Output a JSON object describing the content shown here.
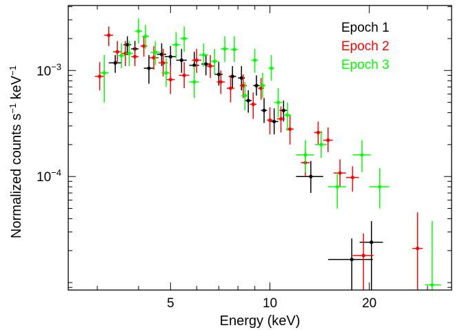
{
  "chart_data": {
    "type": "scatter",
    "title": "",
    "xlabel": "Energy (keV)",
    "ylabel_main": "Normalized counts s",
    "ylabel_sup1": "−1",
    "ylabel_mid": " keV",
    "ylabel_sup2": "−1",
    "x_scale": "log",
    "y_scale": "log",
    "xlim": [
      2.45,
      35.5
    ],
    "ylim": [
      8.5e-06,
      0.0041
    ],
    "x_ticks": [
      {
        "value": 5,
        "label": "5"
      },
      {
        "value": 10,
        "label": "10"
      },
      {
        "value": 20,
        "label": "20"
      }
    ],
    "y_ticks": [
      {
        "value": 0.0001,
        "base": "10",
        "exp": "−4"
      },
      {
        "value": 0.001,
        "base": "10",
        "exp": "−3"
      }
    ],
    "grid": false,
    "legend_position": "top-right",
    "series": [
      {
        "name": "Epoch 1",
        "color": "#000000",
        "points": [
          {
            "x": 3.4,
            "y": 0.00118,
            "xlo": 3.25,
            "xhi": 3.55,
            "ylo": 0.00095,
            "yhi": 0.0014
          },
          {
            "x": 3.7,
            "y": 0.00175,
            "xlo": 3.6,
            "xhi": 3.8,
            "ylo": 0.0014,
            "yhi": 0.0021
          },
          {
            "x": 3.9,
            "y": 0.0016,
            "xlo": 3.8,
            "xhi": 4.0,
            "ylo": 0.0013,
            "yhi": 0.0019
          },
          {
            "x": 4.3,
            "y": 0.00105,
            "xlo": 4.15,
            "xhi": 4.45,
            "ylo": 0.00075,
            "yhi": 0.0014
          },
          {
            "x": 4.7,
            "y": 0.00142,
            "xlo": 4.55,
            "xhi": 4.85,
            "ylo": 0.0011,
            "yhi": 0.0018
          },
          {
            "x": 5.0,
            "y": 0.00135,
            "xlo": 4.8,
            "xhi": 5.2,
            "ylo": 0.00105,
            "yhi": 0.0017
          },
          {
            "x": 5.4,
            "y": 0.00125,
            "xlo": 5.2,
            "xhi": 5.6,
            "ylo": 0.00095,
            "yhi": 0.0016
          },
          {
            "x": 5.9,
            "y": 0.00112,
            "xlo": 5.7,
            "xhi": 6.1,
            "ylo": 0.00085,
            "yhi": 0.0015
          },
          {
            "x": 6.4,
            "y": 0.00115,
            "xlo": 6.2,
            "xhi": 6.6,
            "ylo": 0.0009,
            "yhi": 0.0014
          },
          {
            "x": 7.0,
            "y": 0.00092,
            "xlo": 6.8,
            "xhi": 7.2,
            "ylo": 0.00072,
            "yhi": 0.0012
          },
          {
            "x": 7.7,
            "y": 0.00088,
            "xlo": 7.5,
            "xhi": 7.9,
            "ylo": 0.00068,
            "yhi": 0.0011
          },
          {
            "x": 8.2,
            "y": 0.00085,
            "xlo": 8.0,
            "xhi": 8.4,
            "ylo": 0.00065,
            "yhi": 0.0011
          },
          {
            "x": 8.6,
            "y": 0.00052,
            "xlo": 8.4,
            "xhi": 8.8,
            "ylo": 0.0004,
            "yhi": 0.00065
          },
          {
            "x": 9.1,
            "y": 0.00072,
            "xlo": 8.9,
            "xhi": 9.3,
            "ylo": 0.00058,
            "yhi": 0.0009
          },
          {
            "x": 9.6,
            "y": 0.00042,
            "xlo": 9.4,
            "xhi": 9.8,
            "ylo": 0.00032,
            "yhi": 0.00055
          },
          {
            "x": 10.3,
            "y": 0.00033,
            "xlo": 10.0,
            "xhi": 10.6,
            "ylo": 0.00025,
            "yhi": 0.00044
          },
          {
            "x": 11.0,
            "y": 0.00042,
            "xlo": 10.7,
            "xhi": 11.3,
            "ylo": 0.00033,
            "yhi": 0.00052
          },
          {
            "x": 13.3,
            "y": 0.0001,
            "xlo": 12.0,
            "xhi": 14.5,
            "ylo": 7e-05,
            "yhi": 0.00014
          },
          {
            "x": 17.7,
            "y": 1.65e-05,
            "xlo": 15.0,
            "xhi": 20.5,
            "ylo": 8.5e-06,
            "yhi": 2.6e-05
          },
          {
            "x": 20.3,
            "y": 2.4e-05,
            "xlo": 18.7,
            "xhi": 22.0,
            "ylo": 8.5e-06,
            "yhi": 3.8e-05
          }
        ]
      },
      {
        "name": "Epoch 2",
        "color": "#ff0000",
        "points": [
          {
            "x": 3.05,
            "y": 0.00088,
            "xlo": 2.95,
            "xhi": 3.15,
            "ylo": 0.00065,
            "yhi": 0.0012
          },
          {
            "x": 3.25,
            "y": 0.00215,
            "xlo": 3.15,
            "xhi": 3.35,
            "ylo": 0.0017,
            "yhi": 0.0026
          },
          {
            "x": 3.45,
            "y": 0.0015,
            "xlo": 3.35,
            "xhi": 3.55,
            "ylo": 0.0012,
            "yhi": 0.0019
          },
          {
            "x": 3.65,
            "y": 0.00145,
            "xlo": 3.55,
            "xhi": 3.75,
            "ylo": 0.0011,
            "yhi": 0.0019
          },
          {
            "x": 3.9,
            "y": 0.00135,
            "xlo": 3.8,
            "xhi": 4.0,
            "ylo": 0.0011,
            "yhi": 0.0017
          },
          {
            "x": 4.15,
            "y": 0.0017,
            "xlo": 4.05,
            "xhi": 4.25,
            "ylo": 0.00135,
            "yhi": 0.0021
          },
          {
            "x": 4.45,
            "y": 0.00132,
            "xlo": 4.3,
            "xhi": 4.6,
            "ylo": 0.00102,
            "yhi": 0.0017
          },
          {
            "x": 4.75,
            "y": 0.00118,
            "xlo": 4.6,
            "xhi": 4.9,
            "ylo": 0.00088,
            "yhi": 0.0016
          },
          {
            "x": 5.0,
            "y": 0.00082,
            "xlo": 4.85,
            "xhi": 5.15,
            "ylo": 0.0006,
            "yhi": 0.00112
          },
          {
            "x": 5.5,
            "y": 0.0009,
            "xlo": 5.3,
            "xhi": 5.7,
            "ylo": 0.00068,
            "yhi": 0.0012
          },
          {
            "x": 6.0,
            "y": 0.00125,
            "xlo": 5.8,
            "xhi": 6.2,
            "ylo": 0.00095,
            "yhi": 0.0016
          },
          {
            "x": 6.6,
            "y": 0.0011,
            "xlo": 6.4,
            "xhi": 6.8,
            "ylo": 0.00085,
            "yhi": 0.0014
          },
          {
            "x": 7.1,
            "y": 0.00078,
            "xlo": 6.9,
            "xhi": 7.3,
            "ylo": 0.0006,
            "yhi": 0.001
          },
          {
            "x": 7.6,
            "y": 0.00068,
            "xlo": 7.4,
            "xhi": 7.8,
            "ylo": 0.0005,
            "yhi": 0.0009
          },
          {
            "x": 8.3,
            "y": 0.00072,
            "xlo": 8.1,
            "xhi": 8.5,
            "ylo": 0.00055,
            "yhi": 0.00092
          },
          {
            "x": 8.9,
            "y": 0.00048,
            "xlo": 8.7,
            "xhi": 9.1,
            "ylo": 0.00035,
            "yhi": 0.00062
          },
          {
            "x": 9.4,
            "y": 0.00068,
            "xlo": 9.2,
            "xhi": 9.6,
            "ylo": 0.00053,
            "yhi": 0.00085
          },
          {
            "x": 10.0,
            "y": 0.00034,
            "xlo": 9.8,
            "xhi": 10.2,
            "ylo": 0.00025,
            "yhi": 0.00045
          },
          {
            "x": 10.8,
            "y": 0.00035,
            "xlo": 10.5,
            "xhi": 11.1,
            "ylo": 0.00026,
            "yhi": 0.00046
          },
          {
            "x": 11.5,
            "y": 0.00028,
            "xlo": 11.2,
            "xhi": 11.8,
            "ylo": 0.0002,
            "yhi": 0.00038
          },
          {
            "x": 12.8,
            "y": 0.000135,
            "xlo": 12.4,
            "xhi": 13.2,
            "ylo": 0.0001,
            "yhi": 0.00018
          },
          {
            "x": 14.0,
            "y": 0.00026,
            "xlo": 13.6,
            "xhi": 14.4,
            "ylo": 0.0002,
            "yhi": 0.00033
          },
          {
            "x": 15.0,
            "y": 0.00022,
            "xlo": 14.5,
            "xhi": 15.5,
            "ylo": 0.00017,
            "yhi": 0.00029
          },
          {
            "x": 16.3,
            "y": 0.000108,
            "xlo": 15.6,
            "xhi": 17.0,
            "ylo": 8e-05,
            "yhi": 0.000145
          },
          {
            "x": 17.8,
            "y": 9.8e-05,
            "xlo": 17.0,
            "xhi": 18.6,
            "ylo": 7.2e-05,
            "yhi": 0.000125
          },
          {
            "x": 19.2,
            "y": 1.8e-05,
            "xlo": 17.8,
            "xhi": 20.6,
            "ylo": 8.5e-06,
            "yhi": 2.9e-05
          },
          {
            "x": 28.0,
            "y": 2.1e-05,
            "xlo": 27.0,
            "xhi": 29.0,
            "ylo": 8.5e-06,
            "yhi": 4.6e-05
          }
        ]
      },
      {
        "name": "Epoch 3",
        "color": "#00ff00",
        "points": [
          {
            "x": 3.15,
            "y": 0.00095,
            "xlo": 3.05,
            "xhi": 3.25,
            "ylo": 0.0005,
            "yhi": 0.0014
          },
          {
            "x": 3.55,
            "y": 0.00138,
            "xlo": 3.45,
            "xhi": 3.65,
            "ylo": 0.00105,
            "yhi": 0.0018
          },
          {
            "x": 3.75,
            "y": 0.00145,
            "xlo": 3.65,
            "xhi": 3.85,
            "ylo": 0.0011,
            "yhi": 0.0019
          },
          {
            "x": 4.0,
            "y": 0.00235,
            "xlo": 3.9,
            "xhi": 4.1,
            "ylo": 0.0018,
            "yhi": 0.0031
          },
          {
            "x": 4.2,
            "y": 0.0021,
            "xlo": 4.1,
            "xhi": 4.3,
            "ylo": 0.0016,
            "yhi": 0.0027
          },
          {
            "x": 4.5,
            "y": 0.00148,
            "xlo": 4.35,
            "xhi": 4.65,
            "ylo": 0.00112,
            "yhi": 0.0019
          },
          {
            "x": 4.85,
            "y": 0.00095,
            "xlo": 4.7,
            "xhi": 5.0,
            "ylo": 0.0007,
            "yhi": 0.0013
          },
          {
            "x": 5.2,
            "y": 0.00175,
            "xlo": 5.05,
            "xhi": 5.35,
            "ylo": 0.0013,
            "yhi": 0.0023
          },
          {
            "x": 5.5,
            "y": 0.002,
            "xlo": 5.35,
            "xhi": 5.65,
            "ylo": 0.0015,
            "yhi": 0.0026
          },
          {
            "x": 5.9,
            "y": 0.00078,
            "xlo": 5.7,
            "xhi": 6.1,
            "ylo": 0.00055,
            "yhi": 0.0011
          },
          {
            "x": 6.3,
            "y": 0.0014,
            "xlo": 6.1,
            "xhi": 6.5,
            "ylo": 0.00108,
            "yhi": 0.0018
          },
          {
            "x": 6.8,
            "y": 0.00122,
            "xlo": 6.6,
            "xhi": 7.0,
            "ylo": 0.00092,
            "yhi": 0.0016
          },
          {
            "x": 7.3,
            "y": 0.0016,
            "xlo": 7.1,
            "xhi": 7.5,
            "ylo": 0.0012,
            "yhi": 0.0021
          },
          {
            "x": 7.8,
            "y": 0.00158,
            "xlo": 7.6,
            "xhi": 8.0,
            "ylo": 0.0012,
            "yhi": 0.0021
          },
          {
            "x": 8.4,
            "y": 0.00058,
            "xlo": 8.2,
            "xhi": 8.6,
            "ylo": 0.00042,
            "yhi": 0.00078
          },
          {
            "x": 9.0,
            "y": 0.00125,
            "xlo": 8.8,
            "xhi": 9.2,
            "ylo": 0.00095,
            "yhi": 0.0016
          },
          {
            "x": 9.5,
            "y": 0.00072,
            "xlo": 9.3,
            "xhi": 9.7,
            "ylo": 0.00055,
            "yhi": 0.00095
          },
          {
            "x": 10.1,
            "y": 0.00105,
            "xlo": 9.9,
            "xhi": 10.3,
            "ylo": 0.0008,
            "yhi": 0.0014
          },
          {
            "x": 10.6,
            "y": 0.0005,
            "xlo": 10.3,
            "xhi": 10.9,
            "ylo": 0.00036,
            "yhi": 0.00068
          },
          {
            "x": 11.3,
            "y": 0.00038,
            "xlo": 11.0,
            "xhi": 11.6,
            "ylo": 0.00027,
            "yhi": 0.0005
          },
          {
            "x": 12.8,
            "y": 0.00016,
            "xlo": 12.0,
            "xhi": 13.6,
            "ylo": 0.00011,
            "yhi": 0.00022
          },
          {
            "x": 14.3,
            "y": 0.0002,
            "xlo": 13.7,
            "xhi": 14.9,
            "ylo": 0.00015,
            "yhi": 0.00027
          },
          {
            "x": 16.0,
            "y": 8e-05,
            "xlo": 15.0,
            "xhi": 17.0,
            "ylo": 5e-05,
            "yhi": 0.00011
          },
          {
            "x": 19.0,
            "y": 0.00016,
            "xlo": 17.8,
            "xhi": 20.2,
            "ylo": 0.00011,
            "yhi": 0.00022
          },
          {
            "x": 21.5,
            "y": 8e-05,
            "xlo": 20.0,
            "xhi": 23.0,
            "ylo": 5e-05,
            "yhi": 0.00012
          },
          {
            "x": 31.0,
            "y": 9.5e-06,
            "xlo": 29.5,
            "xhi": 33.0,
            "ylo": 8.5e-06,
            "yhi": 3.8e-05
          }
        ]
      }
    ]
  }
}
